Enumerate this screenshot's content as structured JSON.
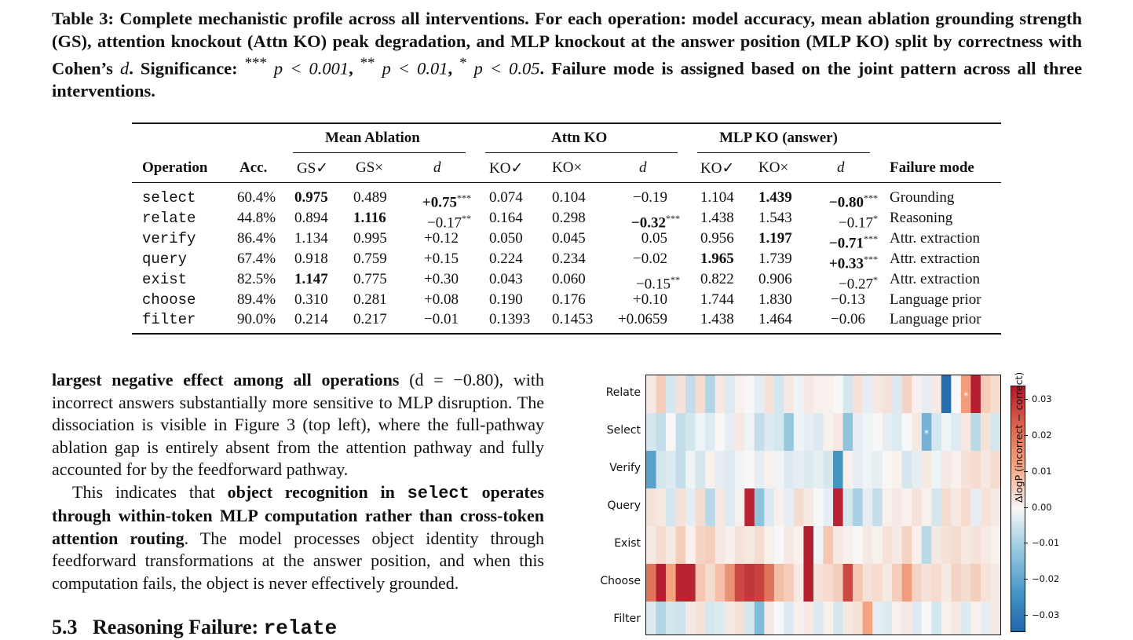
{
  "caption": {
    "label": "Table 3:",
    "text": "Complete mechanistic profile across all interventions. For each operation: model accuracy, mean ablation grounding strength (GS), attention knockout (Attn KO) peak degradation, and MLP knockout at the answer position (MLP KO) split by correctness with Cohen’s",
    "d": "d",
    "sig_prefix": ". Significance: ",
    "sig1": "***",
    "sig1v": "p < 0.001",
    "sig2": "**",
    "sig2v": "p < 0.01",
    "sig3": "*",
    "sig3v": "p < 0.05",
    "tail": ". Failure mode is assigned based on the joint pattern across all three interventions."
  },
  "table": {
    "group_headers": [
      "Mean Ablation",
      "Attn KO",
      "MLP KO (answer)"
    ],
    "columns": [
      "Operation",
      "Acc.",
      "GS✓",
      "GS×",
      "d",
      "KO✓",
      "KO×",
      "d",
      "KO✓",
      "KO×",
      "d",
      "Failure mode"
    ],
    "rows": [
      {
        "op": "select",
        "acc": "60.4%",
        "gs_c": "0.975",
        "gs_x": "0.489",
        "gs_d": "+0.75",
        "gs_sig": "***",
        "ko_c": "0.074",
        "ko_x": "0.104",
        "ko_d": "−0.19",
        "ko_sig": "",
        "mlp_c": "1.104",
        "mlp_x": "1.439",
        "mlp_d": "−0.80",
        "mlp_sig": "***",
        "mode": "Grounding",
        "bold": [
          "gs_c",
          "gs_d",
          "mlp_x",
          "mlp_d"
        ]
      },
      {
        "op": "relate",
        "acc": "44.8%",
        "gs_c": "0.894",
        "gs_x": "1.116",
        "gs_d": "−0.17",
        "gs_sig": "**",
        "ko_c": "0.164",
        "ko_x": "0.298",
        "ko_d": "−0.32",
        "ko_sig": "***",
        "mlp_c": "1.438",
        "mlp_x": "1.543",
        "mlp_d": "−0.17",
        "mlp_sig": "*",
        "mode": "Reasoning",
        "bold": [
          "gs_x",
          "ko_d"
        ]
      },
      {
        "op": "verify",
        "acc": "86.4%",
        "gs_c": "1.134",
        "gs_x": "0.995",
        "gs_d": "+0.12",
        "gs_sig": "",
        "ko_c": "0.050",
        "ko_x": "0.045",
        "ko_d": "0.05",
        "ko_sig": "",
        "mlp_c": "0.956",
        "mlp_x": "1.197",
        "mlp_d": "−0.71",
        "mlp_sig": "***",
        "mode": "Attr. extraction",
        "bold": [
          "mlp_x",
          "mlp_d"
        ]
      },
      {
        "op": "query",
        "acc": "67.4%",
        "gs_c": "0.918",
        "gs_x": "0.759",
        "gs_d": "+0.15",
        "gs_sig": "",
        "ko_c": "0.224",
        "ko_x": "0.234",
        "ko_d": "−0.02",
        "ko_sig": "",
        "mlp_c": "1.965",
        "mlp_x": "1.739",
        "mlp_d": "+0.33",
        "mlp_sig": "***",
        "mode": "Attr. extraction",
        "bold": [
          "mlp_c",
          "mlp_d"
        ]
      },
      {
        "op": "exist",
        "acc": "82.5%",
        "gs_c": "1.147",
        "gs_x": "0.775",
        "gs_d": "+0.30",
        "gs_sig": "",
        "ko_c": "0.043",
        "ko_x": "0.060",
        "ko_d": "−0.15",
        "ko_sig": "**",
        "mlp_c": "0.822",
        "mlp_x": "0.906",
        "mlp_d": "−0.27",
        "mlp_sig": "*",
        "mode": "Attr. extraction",
        "bold": [
          "gs_c"
        ]
      },
      {
        "op": "choose",
        "acc": "89.4%",
        "gs_c": "0.310",
        "gs_x": "0.281",
        "gs_d": "+0.08",
        "gs_sig": "",
        "ko_c": "0.190",
        "ko_x": "0.176",
        "ko_d": "+0.10",
        "ko_sig": "",
        "mlp_c": "1.744",
        "mlp_x": "1.830",
        "mlp_d": "−0.13",
        "mlp_sig": "",
        "mode": "Language prior",
        "bold": []
      },
      {
        "op": "filter",
        "acc": "90.0%",
        "gs_c": "0.214",
        "gs_x": "0.217",
        "gs_d": "−0.01",
        "gs_sig": "",
        "ko_c": "0.1393",
        "ko_x": "0.1453",
        "ko_d": "+0.0659",
        "ko_sig": "",
        "mlp_c": "1.438",
        "mlp_x": "1.464",
        "mlp_d": "−0.06",
        "mlp_sig": "",
        "mode": "Language prior",
        "bold": []
      }
    ]
  },
  "body": {
    "p1_bold": "largest negative effect among all operations",
    "p1_rest": " (d = −0.80), with incorrect answers substantially more sensitive to MLP disruption. The dissociation is visible in Figure 3 (top left), where the full-pathway ablation gap is entirely absent from the attention pathway and fully accounted for by the feedforward pathway.",
    "p2_start": "This indicates that ",
    "p2_bold1": "object recognition in ",
    "p2_code": "select",
    "p2_bold2": " operates through within-token MLP computation rather than cross-token attention routing",
    "p2_rest": ". The model processes object identity through feedforward transformations at the answer position, and when this computation fails, the object is never effectively grounded."
  },
  "heading": {
    "number": "5.3",
    "title": "Reasoning Failure: ",
    "code": "relate"
  },
  "chart_data": {
    "type": "heatmap",
    "rows": [
      "Relate",
      "Select",
      "Verify",
      "Query",
      "Exist",
      "Choose",
      "Filter"
    ],
    "n_cols": 36,
    "colorbar_label": "ΔlogP  (incorrect − correct)",
    "colorbar_ticks": [
      "0.03",
      "0.02",
      "0.01",
      "0.00",
      "−0.01",
      "−0.02",
      "−0.03"
    ],
    "vmin": -0.035,
    "vmax": 0.035,
    "colormap": [
      "#2166ac",
      "#4393c3",
      "#92c5de",
      "#f7f7f7",
      "#f4a582",
      "#d6604d",
      "#b2182b"
    ],
    "star_marker": "*",
    "stars": [
      [
        0,
        32
      ],
      [
        1,
        28
      ]
    ],
    "values": [
      [
        0.002,
        0.006,
        -0.004,
        0.003,
        -0.006,
        0.004,
        -0.008,
        0.002,
        -0.003,
        0.001,
        0.0,
        -0.002,
        0.003,
        -0.004,
        0.002,
        -0.001,
        0.002,
        0.001,
        0.001,
        0.0,
        -0.004,
        0.003,
        -0.002,
        0.002,
        0.003,
        -0.003,
        0.005,
        0.001,
        -0.002,
        0.002,
        -0.033,
        0.0,
        0.013,
        0.034,
        0.006,
        0.004
      ],
      [
        -0.004,
        -0.006,
        0.0,
        -0.006,
        -0.004,
        -0.001,
        -0.003,
        0.0,
        -0.002,
        0.002,
        -0.001,
        -0.006,
        -0.003,
        -0.004,
        -0.011,
        -0.001,
        -0.002,
        -0.003,
        0.001,
        0.002,
        -0.012,
        -0.002,
        -0.001,
        0.0,
        -0.002,
        -0.003,
        0.0,
        0.002,
        -0.016,
        -0.004,
        -0.001,
        -0.003,
        0.002,
        -0.007,
        0.003,
        -0.004
      ],
      [
        -0.02,
        -0.004,
        -0.003,
        -0.006,
        -0.001,
        -0.004,
        0.001,
        -0.002,
        -0.003,
        -0.001,
        0.0,
        -0.002,
        0.001,
        -0.001,
        -0.003,
        -0.002,
        -0.003,
        -0.002,
        -0.004,
        -0.023,
        0.001,
        -0.002,
        -0.001,
        -0.002,
        0.0,
        0.001,
        -0.004,
        -0.002,
        0.002,
        -0.001,
        0.002,
        0.001,
        0.003,
        0.004,
        0.002,
        0.004
      ],
      [
        0.003,
        0.002,
        -0.004,
        0.003,
        -0.002,
        0.004,
        -0.007,
        0.002,
        -0.003,
        0.001,
        0.033,
        -0.012,
        -0.003,
        0.001,
        -0.002,
        0.004,
        0.002,
        0.0,
        -0.002,
        0.033,
        -0.004,
        -0.009,
        -0.002,
        -0.006,
        0.001,
        0.002,
        0.001,
        0.003,
        0.001,
        -0.004,
        0.004,
        0.002,
        0.004,
        -0.002,
        0.003,
        0.002
      ],
      [
        0.002,
        0.004,
        0.002,
        0.006,
        0.001,
        0.005,
        0.006,
        0.002,
        0.001,
        0.003,
        0.002,
        0.004,
        0.001,
        0.0,
        0.002,
        0.001,
        0.034,
        -0.001,
        0.007,
        0.002,
        0.001,
        0.0,
        0.002,
        0.001,
        0.003,
        0.002,
        0.005,
        0.001,
        -0.007,
        0.002,
        0.003,
        0.004,
        0.002,
        0.003,
        0.002,
        0.001
      ],
      [
        0.02,
        0.034,
        0.012,
        0.033,
        0.033,
        0.007,
        0.004,
        0.008,
        0.015,
        0.027,
        0.03,
        0.028,
        0.02,
        0.008,
        0.006,
        0.002,
        0.034,
        0.003,
        0.004,
        0.006,
        0.027,
        0.007,
        0.003,
        0.004,
        0.002,
        0.006,
        0.013,
        0.005,
        0.003,
        0.004,
        0.002,
        0.005,
        0.004,
        0.006,
        0.003,
        0.002
      ],
      [
        -0.003,
        -0.008,
        -0.004,
        -0.005,
        0.002,
        0.003,
        -0.004,
        -0.003,
        0.002,
        0.003,
        -0.004,
        -0.014,
        0.002,
        0.0,
        -0.003,
        0.001,
        0.002,
        -0.003,
        0.001,
        -0.004,
        0.002,
        0.003,
        0.012,
        -0.002,
        -0.003,
        0.001,
        0.002,
        -0.003,
        0.0,
        -0.004,
        0.001,
        0.002,
        -0.003,
        0.001,
        -0.002,
        0.002
      ]
    ]
  }
}
